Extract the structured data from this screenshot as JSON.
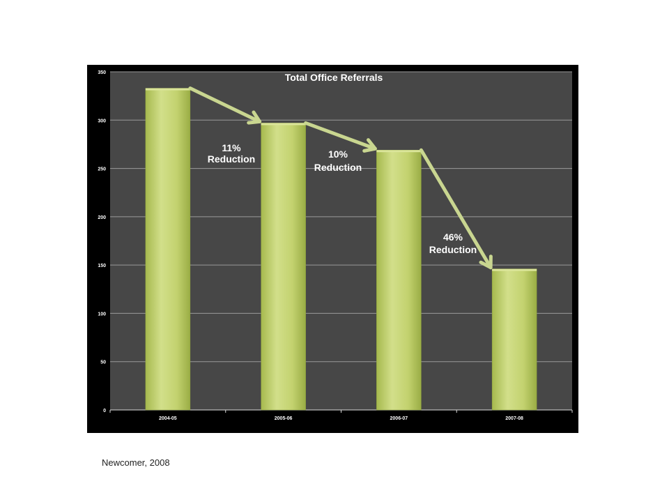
{
  "chart_data": {
    "type": "bar",
    "title": "Total Office Referrals",
    "categories": [
      "2004-05",
      "2005-06",
      "2006-07",
      "2007-08"
    ],
    "values": [
      333,
      297,
      269,
      146
    ],
    "ylim": [
      0,
      350
    ],
    "yticks": [
      "0",
      "50",
      "100",
      "150",
      "200",
      "250",
      "300",
      "350"
    ],
    "grid": true,
    "annotations": [
      {
        "line1": "11%",
        "line2": "Reduction",
        "between": [
          "2004-05",
          "2005-06"
        ]
      },
      {
        "line1": "10%",
        "line2": "Reduction",
        "between": [
          "2005-06",
          "2006-07"
        ]
      },
      {
        "line1": "46%",
        "line2": "Reduction",
        "between": [
          "2006-07",
          "2007-08"
        ]
      }
    ],
    "colors": {
      "bar": "#c3d26f",
      "bar_highlight": "#dbe59a",
      "arrow": "#c9d690",
      "plot_background": "#474747",
      "panel_background": "#000000",
      "gridline": "#9a9a9a",
      "text": "#ffffff"
    }
  },
  "citation": "Newcomer, 2008"
}
